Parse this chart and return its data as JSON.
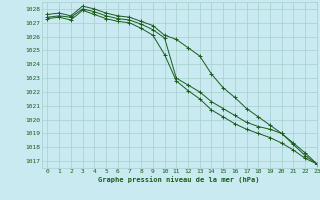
{
  "title": "Graphe pression niveau de la mer (hPa)",
  "background_color": "#c8eaf0",
  "grid_color": "#a8cece",
  "line_color": "#1a5c1a",
  "xlim": [
    -0.5,
    23
  ],
  "ylim": [
    1016.5,
    1028.5
  ],
  "yticks": [
    1017,
    1018,
    1019,
    1020,
    1021,
    1022,
    1023,
    1024,
    1025,
    1026,
    1027,
    1028
  ],
  "xticks": [
    0,
    1,
    2,
    3,
    4,
    5,
    6,
    7,
    8,
    9,
    10,
    11,
    12,
    13,
    14,
    15,
    16,
    17,
    18,
    19,
    20,
    21,
    22,
    23
  ],
  "series": [
    {
      "x": [
        0,
        1,
        2,
        3,
        4,
        5,
        6,
        7,
        8,
        9,
        10,
        11,
        12,
        13,
        14,
        15,
        16,
        17,
        18,
        19,
        20,
        21,
        22,
        23
      ],
      "y": [
        1027.4,
        1027.5,
        1027.4,
        1028.0,
        1027.8,
        1027.5,
        1027.3,
        1027.2,
        1026.9,
        1026.5,
        1025.9,
        1023.0,
        1022.5,
        1022.0,
        1021.3,
        1020.8,
        1020.3,
        1019.8,
        1019.5,
        1019.3,
        1019.0,
        1018.3,
        1017.6,
        1016.8
      ]
    },
    {
      "x": [
        0,
        1,
        2,
        3,
        4,
        5,
        6,
        7,
        8,
        9,
        10,
        11,
        12,
        13,
        14,
        15,
        16,
        17,
        18,
        19,
        20,
        21,
        22,
        23
      ],
      "y": [
        1027.6,
        1027.7,
        1027.5,
        1028.2,
        1028.0,
        1027.7,
        1027.5,
        1027.4,
        1027.1,
        1026.8,
        1026.1,
        1025.8,
        1025.2,
        1024.6,
        1023.3,
        1022.3,
        1021.6,
        1020.8,
        1020.2,
        1019.6,
        1019.0,
        1018.2,
        1017.4,
        1016.8
      ]
    },
    {
      "x": [
        0,
        1,
        2,
        3,
        4,
        5,
        6,
        7,
        8,
        9,
        10,
        11,
        12,
        13,
        14,
        15,
        16,
        17,
        18,
        19,
        20,
        21,
        22,
        23
      ],
      "y": [
        1027.3,
        1027.4,
        1027.2,
        1027.9,
        1027.6,
        1027.3,
        1027.1,
        1027.0,
        1026.6,
        1026.1,
        1024.7,
        1022.8,
        1022.1,
        1021.5,
        1020.7,
        1020.2,
        1019.7,
        1019.3,
        1019.0,
        1018.7,
        1018.3,
        1017.8,
        1017.2,
        1016.8
      ]
    }
  ]
}
